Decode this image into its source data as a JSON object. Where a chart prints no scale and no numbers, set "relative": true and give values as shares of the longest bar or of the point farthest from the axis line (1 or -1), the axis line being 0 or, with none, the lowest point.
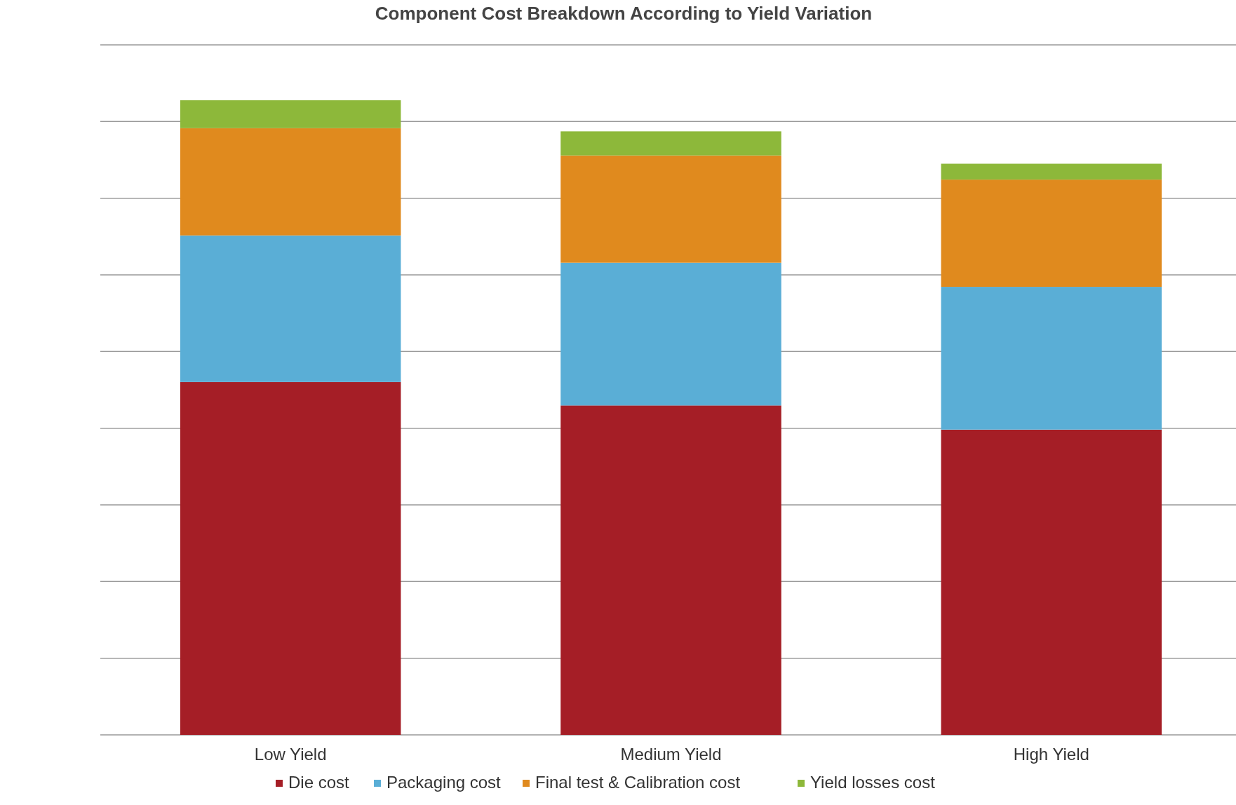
{
  "chart_data": {
    "type": "bar",
    "title": "Component Cost Breakdown According to Yield Variation",
    "categories": [
      "Low Yield",
      "Medium Yield",
      "High Yield"
    ],
    "stacked": true,
    "relative": true,
    "grid": "y",
    "legend": "bottom",
    "series": [
      {
        "name": "Die cost",
        "color": "#a51e26",
        "values": [
          0.556,
          0.519,
          0.481
        ]
      },
      {
        "name": "Packaging cost",
        "color": "#5aaed6",
        "values": [
          0.231,
          0.225,
          0.225
        ]
      },
      {
        "name": "Final test & Calibration cost",
        "color": "#e08a1e",
        "values": [
          0.169,
          0.169,
          0.169
        ]
      },
      {
        "name": "Yield losses cost",
        "color": "#8db83a",
        "values": [
          0.044,
          0.038,
          0.025
        ]
      }
    ]
  }
}
